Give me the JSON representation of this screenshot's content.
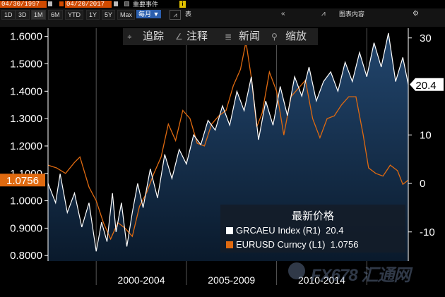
{
  "header": {
    "start_date": "04/30/1997",
    "end_date": "04/20/2017",
    "events_label": "重要事件",
    "info_icon": "i"
  },
  "range_buttons": [
    "1D",
    "3D",
    "1M",
    "6M",
    "YTD",
    "1Y",
    "5Y",
    "Max"
  ],
  "period_select": "每月 ▼",
  "toolbar_top": {
    "table_label": "表",
    "collapse_icon": "«",
    "chart_content_label": "图表内容",
    "gear_icon": "⚙"
  },
  "toolbar": {
    "track_label": "追踪",
    "annotate_label": "注释",
    "news_label": "新闻",
    "zoom_label": "缩放"
  },
  "colors": {
    "white_series": "#ffffff",
    "orange_series": "#e06a10",
    "area_top": "#22466e",
    "area_bottom": "#0a1a2c"
  },
  "chart_data": {
    "type": "line",
    "x_tick_labels": [
      "2000-2004",
      "2005-2009",
      "2010-2014"
    ],
    "x_range": [
      1997.33,
      2017.3
    ],
    "left_axis": {
      "ticks": [
        "1.6000",
        "1.5000",
        "1.4000",
        "1.3000",
        "1.2000",
        "1.1000",
        "1.0000",
        "0.9000",
        "0.8000"
      ],
      "range": [
        0.78,
        1.63
      ]
    },
    "right_axis": {
      "ticks": [
        "30",
        "10",
        "0",
        "-10"
      ],
      "range": [
        -16,
        32
      ]
    },
    "series": [
      {
        "name": "GRCAEU Index",
        "axis": "right",
        "last_label": "20.4",
        "x": [
          1997.33,
          1997.75,
          1998.0,
          1998.4,
          1998.8,
          1999.2,
          1999.6,
          2000.0,
          2000.3,
          2000.6,
          2000.9,
          2001.1,
          2001.4,
          2001.7,
          2002.0,
          2002.3,
          2002.6,
          2003.0,
          2003.4,
          2003.8,
          2004.2,
          2004.6,
          2005.0,
          2005.4,
          2005.8,
          2006.2,
          2006.6,
          2007.0,
          2007.4,
          2007.8,
          2008.2,
          2008.6,
          2009.0,
          2009.4,
          2009.8,
          2010.2,
          2010.6,
          2011.0,
          2011.4,
          2011.8,
          2012.2,
          2012.6,
          2013.0,
          2013.4,
          2013.8,
          2014.2,
          2014.6,
          2015.0,
          2015.4,
          2015.8,
          2016.2,
          2016.6,
          2017.0,
          2017.3
        ],
        "y": [
          0,
          -4,
          2,
          -6,
          -2,
          -9,
          -4,
          -14,
          -8,
          -12,
          -2,
          -10,
          -4,
          -13,
          -6,
          0,
          -5,
          3,
          -3,
          6,
          1,
          7,
          4,
          10,
          8,
          13,
          11,
          16,
          12,
          19,
          15,
          22,
          9,
          17,
          12,
          20,
          14,
          22,
          18,
          24,
          17,
          21,
          23,
          19,
          25,
          21,
          27,
          22,
          29,
          24,
          31,
          21,
          26,
          20.4
        ]
      },
      {
        "name": "EURUSD Curncy",
        "axis": "left",
        "last_label": "1.0756",
        "x": [
          1997.33,
          1997.8,
          1998.3,
          1998.8,
          1999.1,
          1999.6,
          2000.0,
          2000.4,
          2000.8,
          2001.2,
          2001.6,
          2002.0,
          2002.4,
          2002.8,
          2003.2,
          2003.6,
          2004.0,
          2004.4,
          2004.8,
          2005.2,
          2005.6,
          2006.0,
          2006.4,
          2006.8,
          2007.2,
          2007.6,
          2008.0,
          2008.3,
          2008.6,
          2008.9,
          2009.2,
          2009.6,
          2010.0,
          2010.4,
          2010.8,
          2011.2,
          2011.6,
          2012.0,
          2012.4,
          2012.8,
          2013.2,
          2013.6,
          2014.0,
          2014.4,
          2014.8,
          2015.1,
          2015.5,
          2015.9,
          2016.3,
          2016.7,
          2017.0,
          2017.3
        ],
        "y": [
          1.13,
          1.12,
          1.1,
          1.14,
          1.16,
          1.05,
          1.0,
          0.92,
          0.86,
          0.92,
          0.9,
          0.87,
          0.98,
          1.03,
          1.1,
          1.16,
          1.28,
          1.22,
          1.33,
          1.3,
          1.21,
          1.2,
          1.28,
          1.31,
          1.33,
          1.42,
          1.48,
          1.58,
          1.45,
          1.27,
          1.32,
          1.47,
          1.4,
          1.24,
          1.38,
          1.41,
          1.44,
          1.3,
          1.23,
          1.3,
          1.31,
          1.35,
          1.38,
          1.38,
          1.24,
          1.12,
          1.1,
          1.09,
          1.13,
          1.11,
          1.06,
          1.0756
        ]
      }
    ],
    "legend": {
      "title": "最新价格",
      "rows": [
        {
          "label": "GRCAEU Index (R1)",
          "value": "20.4"
        },
        {
          "label": "EURUSD Curncy (L1)",
          "value": "1.0756"
        }
      ],
      "placement": "bottom-right"
    }
  },
  "watermark": {
    "text": "FX678 汇通网"
  }
}
